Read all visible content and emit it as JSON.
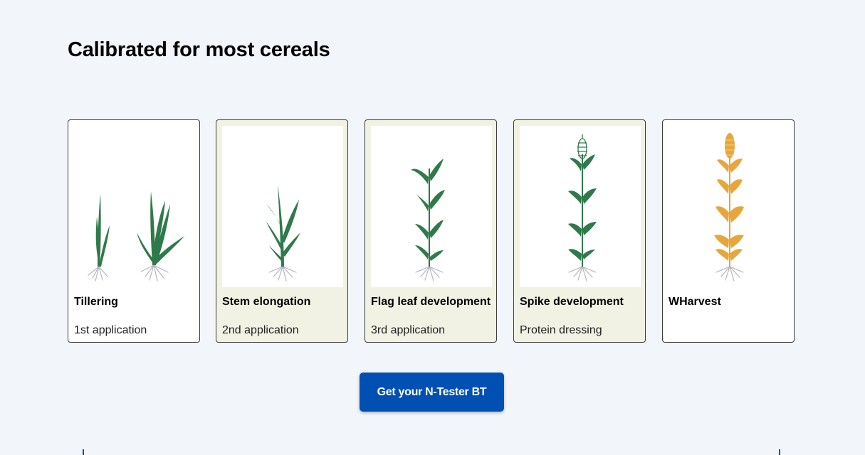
{
  "section": {
    "title": "Calibrated for most cereals"
  },
  "cards": [
    {
      "title": "Tillering",
      "subtitle": "1st application",
      "image": "tillering-plant-illustration",
      "tinted": false
    },
    {
      "title": "Stem elongation",
      "subtitle": "2nd application",
      "image": "stem-elongation-plant-illustration",
      "tinted": true
    },
    {
      "title": "Flag leaf development",
      "subtitle": "3rd application",
      "image": "flag-leaf-plant-illustration",
      "tinted": true
    },
    {
      "title": "Spike development",
      "subtitle": "Protein dressing",
      "image": "spike-development-plant-illustration",
      "tinted": true
    },
    {
      "title": "WHarvest",
      "subtitle": "",
      "image": "harvest-plant-illustration",
      "tinted": false
    }
  ],
  "cta": {
    "label": "Get your N-Tester BT"
  },
  "colors": {
    "background": "#f2f5f9",
    "card_tint": "#f1f2e4",
    "leaf_green": "#2f7a4a",
    "grain_gold": "#e8a63a",
    "root_gray": "#b8b4c0",
    "button_blue": "#0050b4"
  }
}
